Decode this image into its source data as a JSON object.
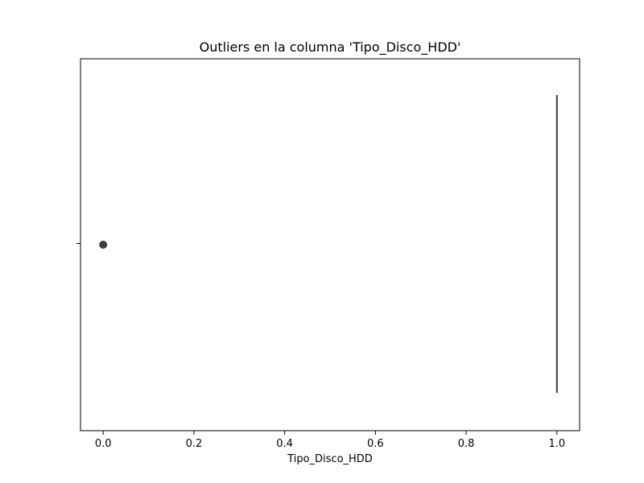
{
  "chart_data": {
    "type": "box",
    "orientation": "horizontal",
    "title": "Outliers en la columna 'Tipo_Disco_HDD'",
    "xlabel": "Tipo_Disco_HDD",
    "ylabel": "",
    "xlim": [
      -0.05,
      1.05
    ],
    "x_ticks": [
      0.0,
      0.2,
      0.4,
      0.6,
      0.8,
      1.0
    ],
    "x_tick_labels": [
      "0.0",
      "0.2",
      "0.4",
      "0.6",
      "0.8",
      "1.0"
    ],
    "grid": false,
    "box": {
      "min": 1.0,
      "q1": 1.0,
      "median": 1.0,
      "q3": 1.0,
      "max": 1.0
    },
    "outliers": [
      0.0
    ],
    "colors": {
      "box_line": "#3d3d3d",
      "outlier": "#3d3d3d",
      "axes": "#000000"
    }
  }
}
